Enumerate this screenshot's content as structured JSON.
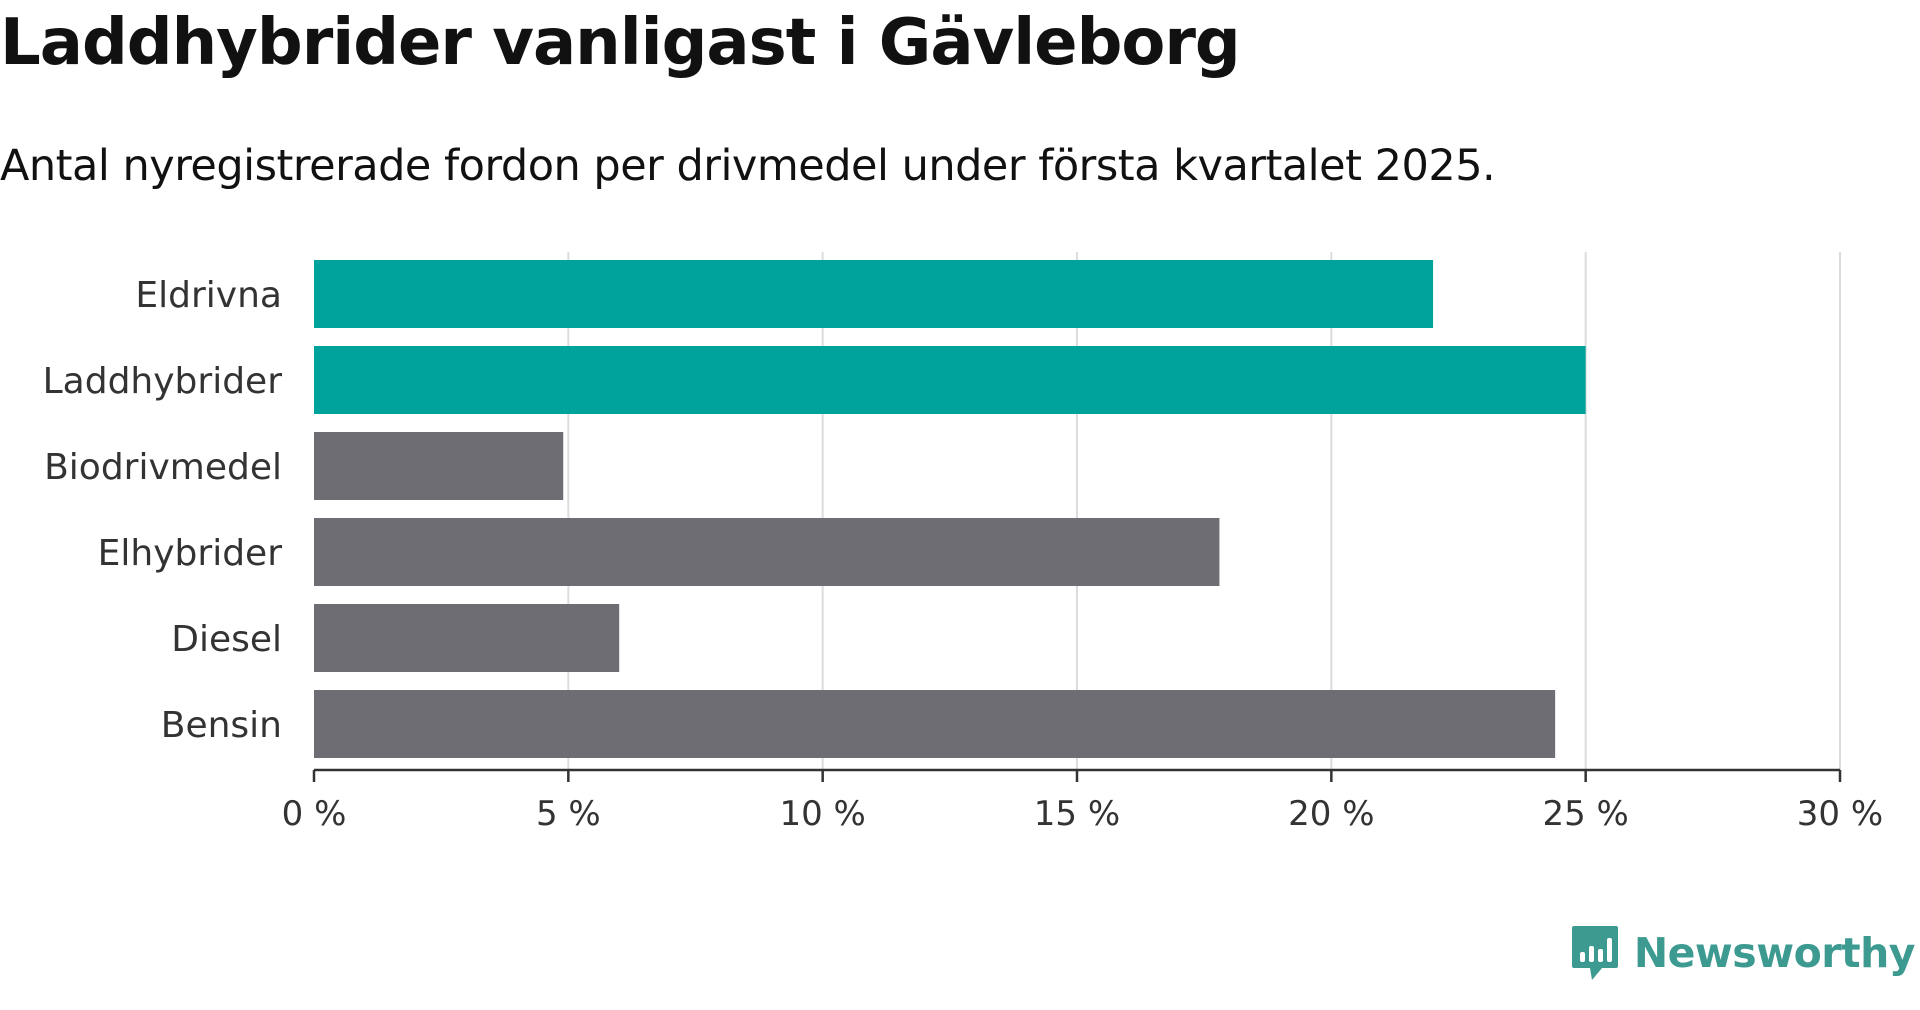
{
  "title": "Laddhybrider vanligast i Gävleborg",
  "subtitle": "Antal nyregistrerade fordon per drivmedel under första kvartalet 2025.",
  "brand": {
    "name": "Newsworthy",
    "icon": "newsworthy-logo-icon",
    "color": "#3d9a90"
  },
  "chart_data": {
    "type": "bar",
    "orientation": "horizontal",
    "categories": [
      "Eldrivna",
      "Laddhybrider",
      "Biodrivmedel",
      "Elhybrider",
      "Diesel",
      "Bensin"
    ],
    "values": [
      22.0,
      25.0,
      4.9,
      17.8,
      6.0,
      24.4
    ],
    "colors": [
      "#00a39b",
      "#00a39b",
      "#6e6d73",
      "#6e6d73",
      "#6e6d73",
      "#6e6d73"
    ],
    "xlim": [
      0,
      30
    ],
    "x_ticks": [
      0,
      5,
      10,
      15,
      20,
      25,
      30
    ],
    "x_tick_labels": [
      "0 %",
      "5 %",
      "10 %",
      "15 %",
      "20 %",
      "25 %",
      "30 %"
    ],
    "grid": "vertical",
    "legend": "none",
    "xlabel": "",
    "ylabel": ""
  }
}
